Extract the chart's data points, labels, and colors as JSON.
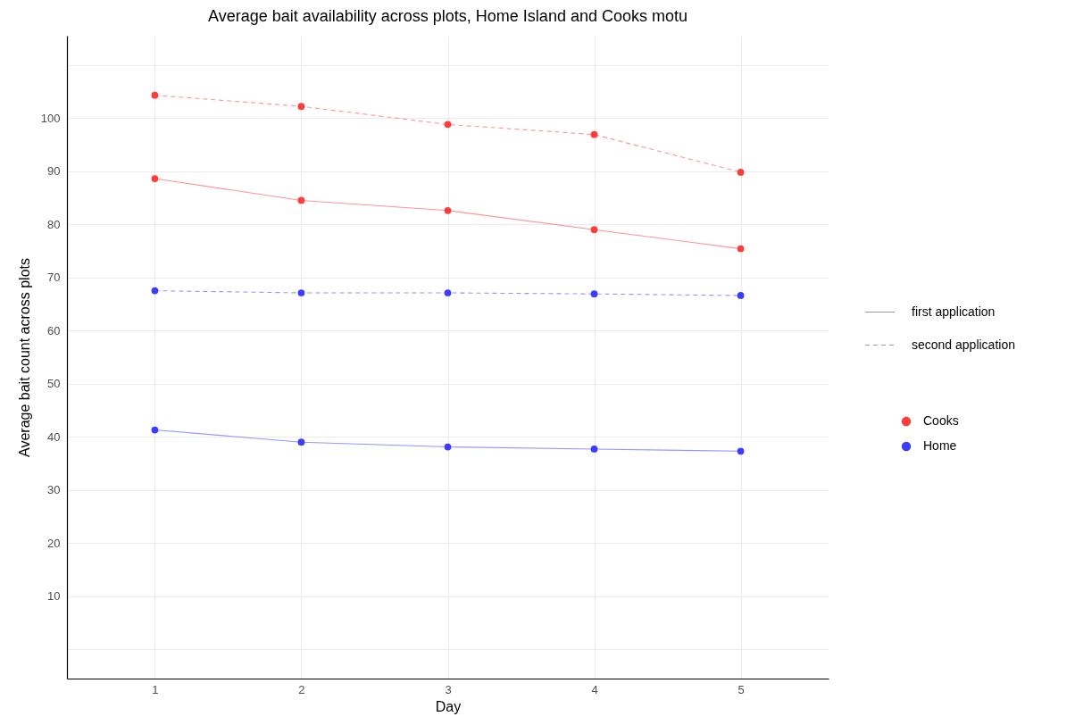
{
  "chart_data": {
    "type": "line",
    "title": "Average bait availability across plots, Home Island and Cooks motu",
    "xlabel": "Day",
    "ylabel": "Average bait count across plots",
    "x": [
      1,
      2,
      3,
      4,
      5
    ],
    "xlim": [
      0.4,
      5.6
    ],
    "xticks": [
      1,
      2,
      3,
      4,
      5
    ],
    "ylim": [
      -5.5,
      115.5
    ],
    "yticks": [
      {
        "value": 0,
        "label": null
      },
      10,
      20,
      30,
      40,
      50,
      60,
      70,
      80,
      90,
      100,
      {
        "value": 110,
        "label": null
      }
    ],
    "grid": true,
    "legend": "right",
    "marker": "circle",
    "annotations": [
      "first application",
      "second application"
    ],
    "series": [
      {
        "name": "Cooks",
        "color": "#ff3c3c",
        "line_style": "solid",
        "values": [
          88.6,
          84.5,
          82.6,
          79.0,
          75.4
        ]
      },
      {
        "color": "#ff3c3c",
        "line_style": "dashed",
        "values": [
          104.3,
          102.2,
          98.8,
          96.9,
          89.8
        ]
      },
      {
        "name": "Home",
        "color": "#3c3cff",
        "line_style": "solid",
        "values": [
          41.3,
          39.0,
          38.1,
          37.7,
          37.3
        ]
      },
      {
        "color": "#3c3cff",
        "line_style": "dashed",
        "values": [
          67.5,
          67.1,
          67.1,
          66.9,
          66.6
        ]
      }
    ]
  }
}
